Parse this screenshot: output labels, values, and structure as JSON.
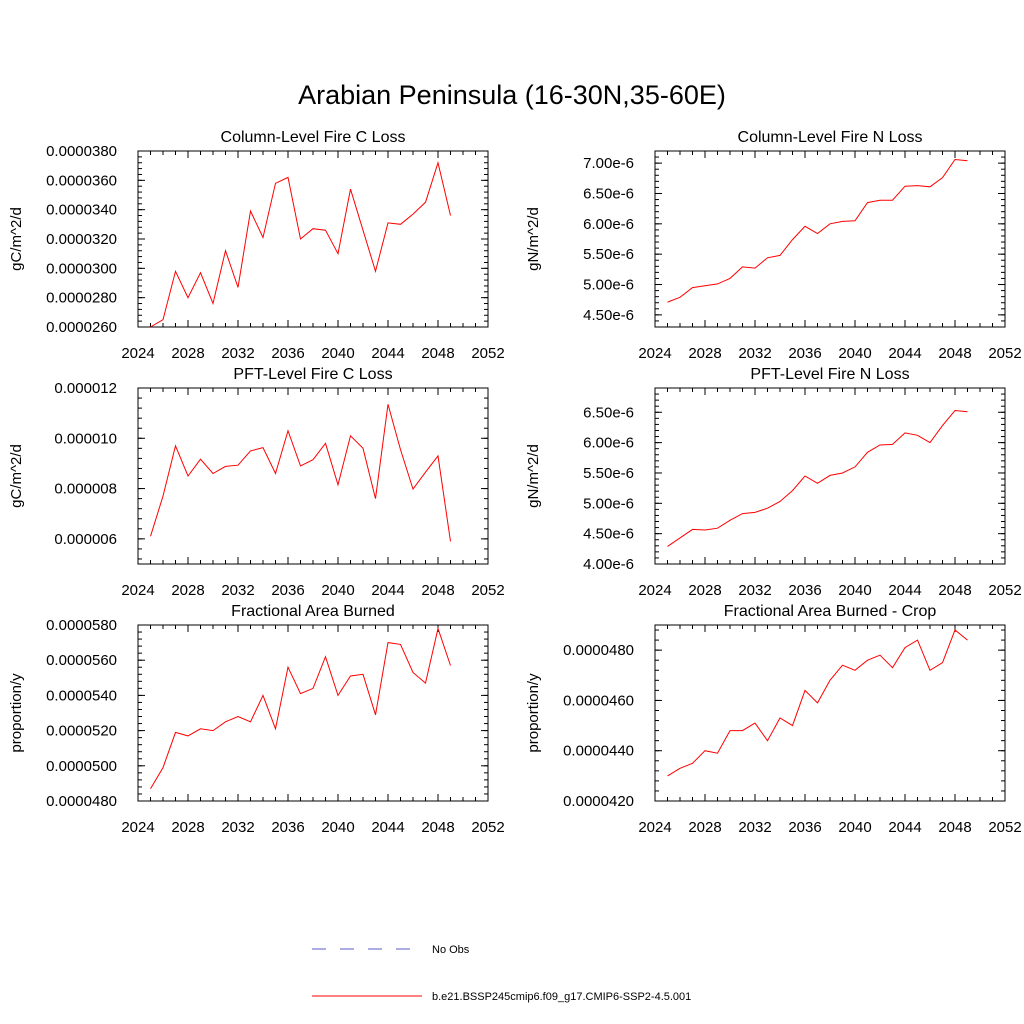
{
  "title": "Arabian Peninsula (16-30N,35-60E)",
  "legend": {
    "entries": [
      {
        "label": "No Obs",
        "color": "#5a5ac8",
        "dash": true
      },
      {
        "label": "b.e21.BSSP245cmip6.f09_g17.CMIP6-SSP2-4.5.001",
        "color": "#ff0000",
        "dash": false
      }
    ]
  },
  "chart_data": [
    {
      "type": "line",
      "title": "Column-Level Fire C Loss",
      "ylabel": "gC/m^2/d",
      "xlim": [
        2024,
        2052
      ],
      "ylim": [
        2.6e-05,
        3.8e-05
      ],
      "xticks": [
        2024,
        2028,
        2032,
        2036,
        2040,
        2044,
        2048,
        2052
      ],
      "xticklabels": [
        "2024",
        "2028",
        "2032",
        "2036",
        "2040",
        "2044",
        "2048",
        "2052"
      ],
      "yticks": [
        2.6e-05,
        2.8e-05,
        3e-05,
        3.2e-05,
        3.4e-05,
        3.6e-05,
        3.8e-05
      ],
      "yticklabels": [
        "0.0000260",
        "0.0000280",
        "0.0000300",
        "0.0000320",
        "0.0000340",
        "0.0000360",
        "0.0000380"
      ],
      "series": [
        {
          "color": "#ff0000",
          "x": [
            2025,
            2026,
            2027,
            2028,
            2029,
            2030,
            2031,
            2032,
            2033,
            2034,
            2035,
            2036,
            2037,
            2038,
            2039,
            2040,
            2041,
            2042,
            2043,
            2044,
            2045,
            2046,
            2047,
            2048,
            2049
          ],
          "y": [
            2.6e-05,
            2.65e-05,
            2.98e-05,
            2.8e-05,
            2.97e-05,
            2.76e-05,
            3.12e-05,
            2.87e-05,
            3.39e-05,
            3.21e-05,
            3.58e-05,
            3.62e-05,
            3.2e-05,
            3.27e-05,
            3.26e-05,
            3.1e-05,
            3.54e-05,
            3.26e-05,
            2.98e-05,
            3.31e-05,
            3.3e-05,
            3.37e-05,
            3.45e-05,
            3.72e-05,
            3.36e-05
          ]
        }
      ]
    },
    {
      "type": "line",
      "title": "Column-Level Fire N Loss",
      "ylabel": "gN/m^2/d",
      "xlim": [
        2024,
        2052
      ],
      "ylim": [
        4.3e-06,
        7.2e-06
      ],
      "xticks": [
        2024,
        2028,
        2032,
        2036,
        2040,
        2044,
        2048,
        2052
      ],
      "xticklabels": [
        "2024",
        "2028",
        "2032",
        "2036",
        "2040",
        "2044",
        "2048",
        "2052"
      ],
      "yticks": [
        4.5e-06,
        5e-06,
        5.5e-06,
        6e-06,
        6.5e-06,
        7e-06
      ],
      "yticklabels": [
        "4.50e-6",
        "5.00e-6",
        "5.50e-6",
        "6.00e-6",
        "6.50e-6",
        "7.00e-6"
      ],
      "series": [
        {
          "color": "#ff0000",
          "x": [
            2025,
            2026,
            2027,
            2028,
            2029,
            2030,
            2031,
            2032,
            2033,
            2034,
            2035,
            2036,
            2037,
            2038,
            2039,
            2040,
            2041,
            2042,
            2043,
            2044,
            2045,
            2046,
            2047,
            2048,
            2049
          ],
          "y": [
            4.71e-06,
            4.79e-06,
            4.95e-06,
            4.98e-06,
            5.01e-06,
            5.1e-06,
            5.29e-06,
            5.27e-06,
            5.44e-06,
            5.48e-06,
            5.74e-06,
            5.96e-06,
            5.84e-06,
            6e-06,
            6.04e-06,
            6.05e-06,
            6.35e-06,
            6.39e-06,
            6.39e-06,
            6.62e-06,
            6.63e-06,
            6.61e-06,
            6.76e-06,
            7.06e-06,
            7.04e-06
          ]
        }
      ]
    },
    {
      "type": "line",
      "title": "PFT-Level Fire C Loss",
      "ylabel": "gC/m^2/d",
      "xlim": [
        2024,
        2052
      ],
      "ylim": [
        5e-06,
        1.2e-05
      ],
      "xticks": [
        2024,
        2028,
        2032,
        2036,
        2040,
        2044,
        2048,
        2052
      ],
      "xticklabels": [
        "2024",
        "2028",
        "2032",
        "2036",
        "2040",
        "2044",
        "2048",
        "2052"
      ],
      "yticks": [
        6e-06,
        8e-06,
        1e-05,
        1.2e-05
      ],
      "yticklabels": [
        "0.000006",
        "0.000008",
        "0.000010",
        "0.000012"
      ],
      "series": [
        {
          "color": "#ff0000",
          "x": [
            2025,
            2026,
            2027,
            2028,
            2029,
            2030,
            2031,
            2032,
            2033,
            2034,
            2035,
            2036,
            2037,
            2038,
            2039,
            2040,
            2041,
            2042,
            2043,
            2044,
            2045,
            2046,
            2047,
            2048,
            2049
          ],
          "y": [
            6.1e-06,
            7.7e-06,
            9.7e-06,
            8.5e-06,
            9.17e-06,
            8.6e-06,
            8.88e-06,
            8.93e-06,
            9.5e-06,
            9.63e-06,
            8.6e-06,
            1.03e-05,
            8.9e-06,
            9.15e-06,
            9.8e-06,
            8.15e-06,
            1.01e-05,
            9.6e-06,
            7.6e-06,
            1.135e-05,
            9.55e-06,
            7.98e-06,
            8.65e-06,
            9.3e-06,
            5.9e-06
          ]
        }
      ]
    },
    {
      "type": "line",
      "title": "PFT-Level Fire N Loss",
      "ylabel": "gN/m^2/d",
      "xlim": [
        2024,
        2052
      ],
      "ylim": [
        4e-06,
        6.9e-06
      ],
      "xticks": [
        2024,
        2028,
        2032,
        2036,
        2040,
        2044,
        2048,
        2052
      ],
      "xticklabels": [
        "2024",
        "2028",
        "2032",
        "2036",
        "2040",
        "2044",
        "2048",
        "2052"
      ],
      "yticks": [
        4e-06,
        4.5e-06,
        5e-06,
        5.5e-06,
        6e-06,
        6.5e-06
      ],
      "yticklabels": [
        "4.00e-6",
        "4.50e-6",
        "5.00e-6",
        "5.50e-6",
        "6.00e-6",
        "6.50e-6"
      ],
      "series": [
        {
          "color": "#ff0000",
          "x": [
            2025,
            2026,
            2027,
            2028,
            2029,
            2030,
            2031,
            2032,
            2033,
            2034,
            2035,
            2036,
            2037,
            2038,
            2039,
            2040,
            2041,
            2042,
            2043,
            2044,
            2045,
            2046,
            2047,
            2048,
            2049
          ],
          "y": [
            4.29e-06,
            4.43e-06,
            4.57e-06,
            4.56e-06,
            4.59e-06,
            4.72e-06,
            4.83e-06,
            4.85e-06,
            4.92e-06,
            5.03e-06,
            5.21e-06,
            5.45e-06,
            5.33e-06,
            5.46e-06,
            5.5e-06,
            5.6e-06,
            5.84e-06,
            5.96e-06,
            5.97e-06,
            6.16e-06,
            6.12e-06,
            6e-06,
            6.28e-06,
            6.53e-06,
            6.51e-06
          ]
        }
      ]
    },
    {
      "type": "line",
      "title": "Fractional Area Burned",
      "ylabel": "proportion/y",
      "xlim": [
        2024,
        2052
      ],
      "ylim": [
        4.8e-05,
        5.8e-05
      ],
      "xticks": [
        2024,
        2028,
        2032,
        2036,
        2040,
        2044,
        2048,
        2052
      ],
      "xticklabels": [
        "2024",
        "2028",
        "2032",
        "2036",
        "2040",
        "2044",
        "2048",
        "2052"
      ],
      "yticks": [
        4.8e-05,
        5e-05,
        5.2e-05,
        5.4e-05,
        5.6e-05,
        5.8e-05
      ],
      "yticklabels": [
        "0.0000480",
        "0.0000500",
        "0.0000520",
        "0.0000540",
        "0.0000560",
        "0.0000580"
      ],
      "series": [
        {
          "color": "#ff0000",
          "x": [
            2025,
            2026,
            2027,
            2028,
            2029,
            2030,
            2031,
            2032,
            2033,
            2034,
            2035,
            2036,
            2037,
            2038,
            2039,
            2040,
            2041,
            2042,
            2043,
            2044,
            2045,
            2046,
            2047,
            2048,
            2049
          ],
          "y": [
            4.87e-05,
            4.99e-05,
            5.19e-05,
            5.17e-05,
            5.21e-05,
            5.2e-05,
            5.25e-05,
            5.28e-05,
            5.25e-05,
            5.4e-05,
            5.21e-05,
            5.56e-05,
            5.41e-05,
            5.44e-05,
            5.62e-05,
            5.4e-05,
            5.51e-05,
            5.52e-05,
            5.29e-05,
            5.7e-05,
            5.69e-05,
            5.53e-05,
            5.47e-05,
            5.78e-05,
            5.57e-05
          ]
        }
      ]
    },
    {
      "type": "line",
      "title": "Fractional Area Burned - Crop",
      "ylabel": "proportion/y",
      "xlim": [
        2024,
        2052
      ],
      "ylim": [
        4.2e-05,
        4.9e-05
      ],
      "xticks": [
        2024,
        2028,
        2032,
        2036,
        2040,
        2044,
        2048,
        2052
      ],
      "xticklabels": [
        "2024",
        "2028",
        "2032",
        "2036",
        "2040",
        "2044",
        "2048",
        "2052"
      ],
      "yticks": [
        4.2e-05,
        4.4e-05,
        4.6e-05,
        4.8e-05
      ],
      "yticklabels": [
        "0.0000420",
        "0.0000440",
        "0.0000460",
        "0.0000480"
      ],
      "series": [
        {
          "color": "#ff0000",
          "x": [
            2025,
            2026,
            2027,
            2028,
            2029,
            2030,
            2031,
            2032,
            2033,
            2034,
            2035,
            2036,
            2037,
            2038,
            2039,
            2040,
            2041,
            2042,
            2043,
            2044,
            2045,
            2046,
            2047,
            2048,
            2049
          ],
          "y": [
            4.3e-05,
            4.33e-05,
            4.35e-05,
            4.4e-05,
            4.39e-05,
            4.48e-05,
            4.48e-05,
            4.51e-05,
            4.44e-05,
            4.53e-05,
            4.5e-05,
            4.64e-05,
            4.59e-05,
            4.68e-05,
            4.74e-05,
            4.72e-05,
            4.76e-05,
            4.78e-05,
            4.73e-05,
            4.81e-05,
            4.84e-05,
            4.72e-05,
            4.75e-05,
            4.88e-05,
            4.84e-05
          ]
        }
      ]
    }
  ]
}
